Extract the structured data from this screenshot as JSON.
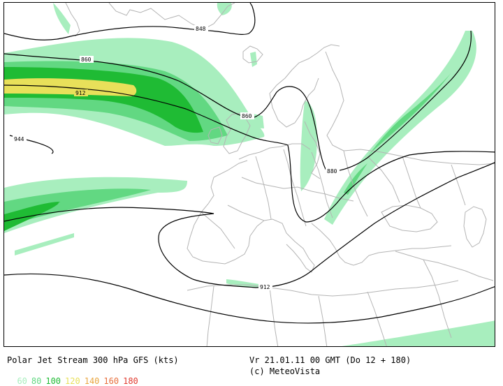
{
  "title": "Polar Jet Stream 300 hPa GFS (kts)",
  "valid_time": "Vr 21.01.11 00 GMT (Do 12 + 180)",
  "credit": "(c) MeteoVista",
  "legend": [
    {
      "label": "60",
      "color": "#a8eebe"
    },
    {
      "label": "80",
      "color": "#62d882"
    },
    {
      "label": "100",
      "color": "#1fbb34"
    },
    {
      "label": "120",
      "color": "#e8e05a"
    },
    {
      "label": "140",
      "color": "#e9a53e"
    },
    {
      "label": "160",
      "color": "#e86f3c"
    },
    {
      "label": "180",
      "color": "#e03a2e"
    }
  ],
  "contour_labels": {
    "c848": "848",
    "c860a": "860",
    "c860b": "860",
    "c880": "880",
    "c912a": "912",
    "c912b": "912",
    "c944": "944"
  },
  "colors": {
    "jet_60": "#a8eebe",
    "jet_80": "#62d882",
    "jet_100": "#1fbb34",
    "jet_120": "#e8e05a",
    "coast": "#b4b4b4",
    "contour": "#000000"
  }
}
